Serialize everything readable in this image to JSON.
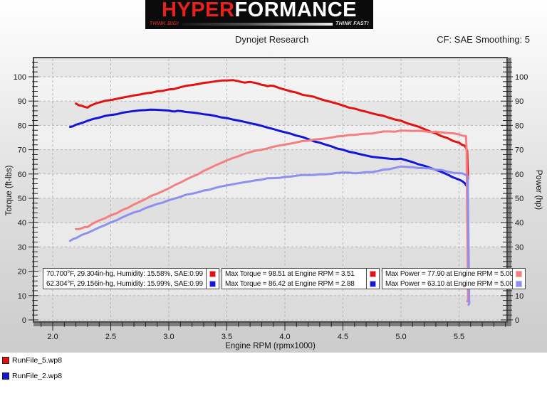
{
  "logo": {
    "part1": "HYPER",
    "part2": "FORMANCE",
    "tagline_left": "THINK BIG!",
    "tagline_right": "THINK FAST!"
  },
  "header": {
    "title": "Dynojet Research",
    "smoothing": "CF: SAE Smoothing: 5"
  },
  "colors": {
    "run1_torque": "#e31212",
    "run2_torque": "#1515d8",
    "run1_power": "#f28080",
    "run2_power": "#8f8ff0",
    "run1_light_border": "#f4a0a0",
    "run2_light_border": "#aaaaf4"
  },
  "chart_data": {
    "type": "line",
    "title": "Dynojet Research",
    "xlabel": "Engine RPM (rpmx1000)",
    "ylabel_left": "Torque (ft-lbs)",
    "ylabel_right": "Power (hp)",
    "xlim": [
      1.84,
      5.9
    ],
    "ylim": [
      0,
      107.6
    ],
    "x_major_ticks": [
      2.0,
      2.5,
      3.0,
      3.5,
      4.0,
      4.5,
      5.0,
      5.5
    ],
    "y_major_ticks": [
      0,
      10,
      20,
      30,
      40,
      50,
      60,
      70,
      80,
      90,
      100
    ],
    "grid": "dashed",
    "legend_position": "inside-bottom",
    "series": [
      {
        "name": "RunFile_5 Torque (ft-lbs)",
        "axis": "torque",
        "color": "#e31212",
        "max_label": "Max Torque = 98.51 at Engine RPM = 3.51",
        "points": [
          [
            2.2,
            89.0
          ],
          [
            2.25,
            88.1
          ],
          [
            2.3,
            87.3
          ],
          [
            2.35,
            88.6
          ],
          [
            2.4,
            89.4
          ],
          [
            2.5,
            90.4
          ],
          [
            2.6,
            91.4
          ],
          [
            2.7,
            92.3
          ],
          [
            2.8,
            93.2
          ],
          [
            2.9,
            94.0
          ],
          [
            3.0,
            94.8
          ],
          [
            3.1,
            95.7
          ],
          [
            3.2,
            96.6
          ],
          [
            3.3,
            97.5
          ],
          [
            3.4,
            98.1
          ],
          [
            3.51,
            98.51
          ],
          [
            3.6,
            98.2
          ],
          [
            3.65,
            97.6
          ],
          [
            3.7,
            97.9
          ],
          [
            3.8,
            96.7
          ],
          [
            3.85,
            96.1
          ],
          [
            3.9,
            96.3
          ],
          [
            4.0,
            94.7
          ],
          [
            4.1,
            93.5
          ],
          [
            4.2,
            92.2
          ],
          [
            4.3,
            90.9
          ],
          [
            4.4,
            89.6
          ],
          [
            4.5,
            88.2
          ],
          [
            4.6,
            86.9
          ],
          [
            4.7,
            85.6
          ],
          [
            4.8,
            84.4
          ],
          [
            4.9,
            83.1
          ],
          [
            5.0,
            81.9
          ],
          [
            5.1,
            80.2
          ],
          [
            5.2,
            78.5
          ],
          [
            5.3,
            76.7
          ],
          [
            5.4,
            74.8
          ],
          [
            5.5,
            72.9
          ],
          [
            5.55,
            71.6
          ],
          [
            5.57,
            69.5
          ],
          [
            5.578,
            58.0
          ]
        ]
      },
      {
        "name": "RunFile_2 Torque (ft-lbs)",
        "axis": "torque",
        "color": "#1515d8",
        "max_label": "Max Torque = 86.42 at Engine RPM = 2.88",
        "points": [
          [
            2.15,
            79.4
          ],
          [
            2.2,
            80.3
          ],
          [
            2.3,
            81.9
          ],
          [
            2.4,
            83.2
          ],
          [
            2.5,
            84.3
          ],
          [
            2.6,
            85.2
          ],
          [
            2.7,
            85.9
          ],
          [
            2.8,
            86.3
          ],
          [
            2.88,
            86.42
          ],
          [
            3.0,
            86.1
          ],
          [
            3.05,
            85.7
          ],
          [
            3.1,
            85.9
          ],
          [
            3.2,
            85.3
          ],
          [
            3.3,
            84.6
          ],
          [
            3.4,
            83.9
          ],
          [
            3.5,
            83.0
          ],
          [
            3.6,
            82.0
          ],
          [
            3.7,
            80.9
          ],
          [
            3.8,
            79.8
          ],
          [
            3.9,
            78.5
          ],
          [
            4.0,
            77.2
          ],
          [
            4.1,
            75.8
          ],
          [
            4.2,
            74.4
          ],
          [
            4.3,
            72.9
          ],
          [
            4.4,
            71.4
          ],
          [
            4.5,
            70.0
          ],
          [
            4.6,
            68.7
          ],
          [
            4.7,
            67.6
          ],
          [
            4.8,
            66.8
          ],
          [
            4.9,
            66.3
          ],
          [
            5.0,
            66.3
          ],
          [
            5.1,
            64.9
          ],
          [
            5.2,
            63.4
          ],
          [
            5.3,
            61.7
          ],
          [
            5.4,
            59.8
          ],
          [
            5.5,
            57.7
          ],
          [
            5.55,
            56.2
          ],
          [
            5.57,
            54.8
          ]
        ]
      },
      {
        "name": "RunFile_5 Power (hp)",
        "axis": "power",
        "color": "#f28080",
        "max_label": "Max Power = 77.90 at Engine RPM = 5.00",
        "points": [
          [
            2.2,
            37.3
          ],
          [
            2.25,
            37.7
          ],
          [
            2.3,
            38.2
          ],
          [
            2.4,
            40.9
          ],
          [
            2.5,
            43.0
          ],
          [
            2.6,
            45.2
          ],
          [
            2.7,
            47.5
          ],
          [
            2.8,
            49.7
          ],
          [
            2.9,
            51.9
          ],
          [
            3.0,
            54.1
          ],
          [
            3.1,
            56.5
          ],
          [
            3.2,
            58.9
          ],
          [
            3.3,
            61.3
          ],
          [
            3.4,
            63.5
          ],
          [
            3.5,
            65.6
          ],
          [
            3.6,
            67.3
          ],
          [
            3.7,
            69.0
          ],
          [
            3.8,
            70.0
          ],
          [
            3.9,
            71.2
          ],
          [
            4.0,
            72.1
          ],
          [
            4.1,
            73.0
          ],
          [
            4.2,
            73.7
          ],
          [
            4.3,
            74.4
          ],
          [
            4.4,
            75.0
          ],
          [
            4.5,
            75.6
          ],
          [
            4.6,
            76.1
          ],
          [
            4.7,
            76.6
          ],
          [
            4.8,
            77.1
          ],
          [
            4.9,
            77.5
          ],
          [
            5.0,
            77.9
          ],
          [
            5.1,
            77.7
          ],
          [
            5.2,
            77.6
          ],
          [
            5.3,
            77.4
          ],
          [
            5.4,
            76.9
          ],
          [
            5.5,
            76.3
          ],
          [
            5.56,
            75.6
          ],
          [
            5.565,
            70.0
          ],
          [
            5.57,
            45.0
          ],
          [
            5.578,
            8.5
          ],
          [
            5.572,
            7.6
          ]
        ]
      },
      {
        "name": "RunFile_2 Power (hp)",
        "axis": "power",
        "color": "#8f8ff0",
        "max_label": "Max Power = 63.10 at Engine RPM = 5.00",
        "points": [
          [
            2.15,
            32.5
          ],
          [
            2.2,
            33.6
          ],
          [
            2.3,
            35.8
          ],
          [
            2.4,
            38.0
          ],
          [
            2.5,
            40.1
          ],
          [
            2.6,
            42.2
          ],
          [
            2.7,
            44.2
          ],
          [
            2.8,
            46.0
          ],
          [
            2.9,
            47.7
          ],
          [
            3.0,
            49.2
          ],
          [
            3.1,
            50.6
          ],
          [
            3.2,
            51.9
          ],
          [
            3.3,
            53.2
          ],
          [
            3.4,
            54.3
          ],
          [
            3.5,
            55.3
          ],
          [
            3.6,
            56.2
          ],
          [
            3.7,
            57.0
          ],
          [
            3.8,
            57.7
          ],
          [
            3.9,
            58.3
          ],
          [
            4.0,
            58.8
          ],
          [
            4.1,
            59.3
          ],
          [
            4.2,
            59.6
          ],
          [
            4.3,
            59.9
          ],
          [
            4.4,
            60.1
          ],
          [
            4.5,
            60.6
          ],
          [
            4.6,
            60.3
          ],
          [
            4.7,
            60.8
          ],
          [
            4.8,
            61.2
          ],
          [
            4.9,
            62.0
          ],
          [
            5.0,
            63.1
          ],
          [
            5.1,
            62.8
          ],
          [
            5.2,
            62.4
          ],
          [
            5.3,
            61.8
          ],
          [
            5.4,
            61.0
          ],
          [
            5.5,
            60.3
          ],
          [
            5.55,
            59.8
          ],
          [
            5.575,
            59.0
          ],
          [
            5.58,
            40.0
          ],
          [
            5.588,
            6.8
          ],
          [
            5.582,
            6.2
          ]
        ]
      }
    ]
  },
  "legend": {
    "weather": {
      "rows": [
        {
          "text": "70.700°F, 29.304in-hg, Humidity: 15.58%, SAE:0.99",
          "fill": "#e31212",
          "border": "#f4a0a0"
        },
        {
          "text": "62.304°F, 29.156in-hg, Humidity: 15.99%, SAE:0.99",
          "fill": "#1515d8",
          "border": "#aaaaf4"
        }
      ]
    },
    "max_torque": {
      "rows": [
        {
          "text": "Max Torque = 98.51 at Engine RPM = 3.51",
          "fill": "#e31212",
          "border": "#f4a0a0"
        },
        {
          "text": "Max Torque = 86.42 at Engine RPM = 2.88",
          "fill": "#1515d8",
          "border": "#aaaaf4"
        }
      ]
    },
    "max_power": {
      "rows": [
        {
          "text": "Max Power = 77.90 at Engine RPM = 5.00",
          "fill": "#f28080",
          "border": "#f4b4b4"
        },
        {
          "text": "Max Power = 63.10 at Engine RPM = 5.00",
          "fill": "#8f8ff0",
          "border": "#bcbcf6"
        }
      ]
    }
  },
  "files": [
    {
      "name": "RunFile_5.wp8",
      "color": "#e31212"
    },
    {
      "name": "RunFile_2.wp8",
      "color": "#1515d8"
    }
  ]
}
